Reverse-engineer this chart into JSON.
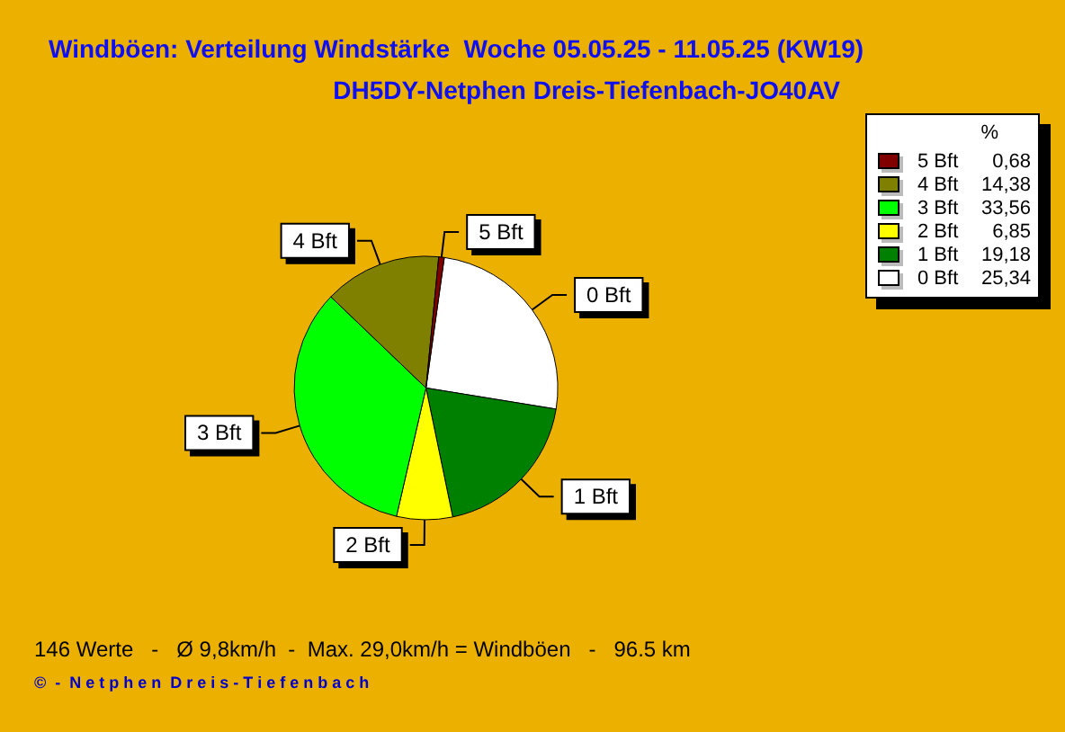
{
  "chart_data": {
    "type": "pie",
    "title": "Windböen: Verteilung Windstärke  Woche 05.05.25 - 11.05.25 (KW19)",
    "subtitle": "DH5DY-Netphen Dreis-Tiefenbach-JO40AV",
    "categories": [
      "0 Bft",
      "1 Bft",
      "2 Bft",
      "3 Bft",
      "4 Bft",
      "5 Bft"
    ],
    "values": [
      25.34,
      19.18,
      6.85,
      33.56,
      14.38,
      0.68
    ],
    "value_labels": [
      "25,34",
      "19,18",
      "6,85",
      "33,56",
      "14,38",
      "0,68"
    ],
    "colors": [
      "#ffffff",
      "#008000",
      "#ffff00",
      "#00ff00",
      "#808000",
      "#800000"
    ],
    "legend": "top right",
    "legend_title": "%",
    "annotations": [
      "146 Werte   -   Ø 9,8km/h  -  Max. 29,0km/h = Windböen   -   96.5 km",
      "©  -  N e t p h e n  D r e i s - T i e f e n b a c h"
    ]
  }
}
